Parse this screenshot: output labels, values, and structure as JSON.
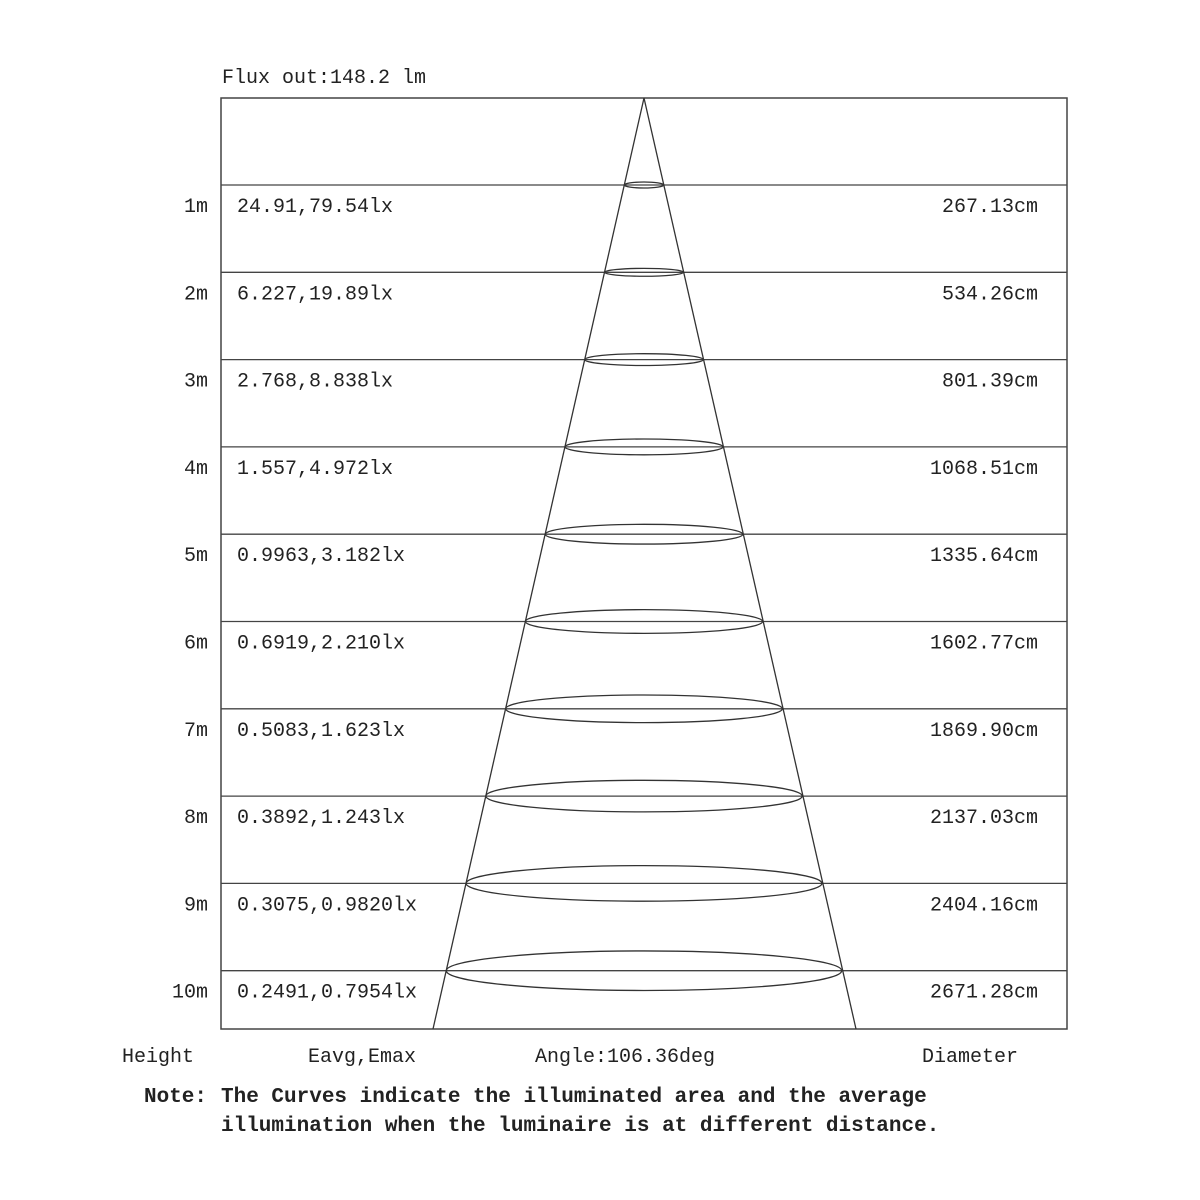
{
  "flux_label": "Flux out:148.2 lm",
  "rows": [
    {
      "height": "1m",
      "eavg_emax": "24.91,79.54lx",
      "diameter": "267.13cm"
    },
    {
      "height": "2m",
      "eavg_emax": "6.227,19.89lx",
      "diameter": "534.26cm"
    },
    {
      "height": "3m",
      "eavg_emax": "2.768,8.838lx",
      "diameter": "801.39cm"
    },
    {
      "height": "4m",
      "eavg_emax": "1.557,4.972lx",
      "diameter": "1068.51cm"
    },
    {
      "height": "5m",
      "eavg_emax": "0.9963,3.182lx",
      "diameter": "1335.64cm"
    },
    {
      "height": "6m",
      "eavg_emax": "0.6919,2.210lx",
      "diameter": "1602.77cm"
    },
    {
      "height": "7m",
      "eavg_emax": "0.5083,1.623lx",
      "diameter": "1869.90cm"
    },
    {
      "height": "8m",
      "eavg_emax": "0.3892,1.243lx",
      "diameter": "2137.03cm"
    },
    {
      "height": "9m",
      "eavg_emax": "0.3075,0.9820lx",
      "diameter": "2404.16cm"
    },
    {
      "height": "10m",
      "eavg_emax": "0.2491,0.7954lx",
      "diameter": "2671.28cm"
    }
  ],
  "footer": {
    "height_label": "Height",
    "eavg_label": "Eavg,Emax",
    "angle_label": "Angle:106.36deg",
    "diameter_label": "Diameter"
  },
  "note": {
    "prefix": "Note:",
    "line1": "The Curves indicate the illuminated area and the average",
    "line2": "illumination when the luminaire is at different distance."
  }
}
